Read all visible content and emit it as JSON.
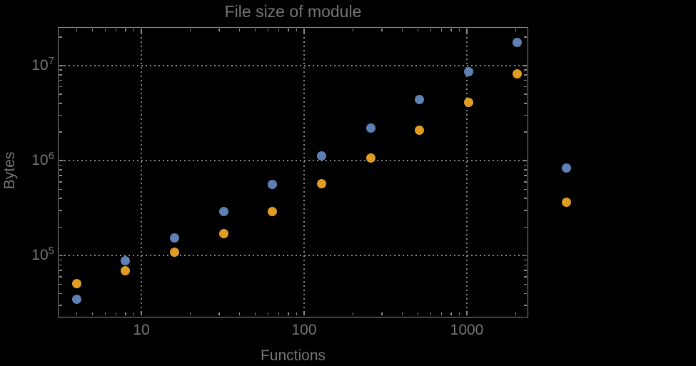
{
  "colors": {
    "background": "#000000",
    "frame": "#8a8a8a",
    "grid": "#868686",
    "text": "#757575",
    "series_blue": "#5e81b5",
    "series_orange": "#e19c24"
  },
  "chart_data": {
    "type": "scatter",
    "title": "File size of module",
    "xlabel": "Functions",
    "ylabel": "Bytes",
    "x_scale": "log",
    "y_scale": "log",
    "grid": "dotted lines at decade ticks, frame ticks on all four edges",
    "legend": "none",
    "x": [
      4,
      8,
      16,
      32,
      64,
      128,
      256,
      512,
      1024,
      2048,
      4096
    ],
    "series": [
      {
        "name": "blue",
        "color": "#5e81b5",
        "values": [
          35000,
          88000,
          155000,
          290000,
          560000,
          1120000,
          2200000,
          4390000,
          8630000,
          17550000,
          841000
        ]
      },
      {
        "name": "orange",
        "color": "#e19c24",
        "values": [
          50500,
          69000,
          108000,
          172000,
          290000,
          575000,
          1060000,
          2090000,
          4100000,
          8190000,
          366000
        ]
      }
    ],
    "x_ticks": [
      {
        "value": 10,
        "label": "10"
      },
      {
        "value": 100,
        "label": "100"
      },
      {
        "value": 1000,
        "label": "1000"
      }
    ],
    "y_ticks": [
      {
        "value": 100000,
        "base": "10",
        "exp": "5"
      },
      {
        "value": 1000000,
        "base": "10",
        "exp": "6"
      },
      {
        "value": 10000000,
        "base": "10",
        "exp": "7"
      }
    ],
    "x_log_range": [
      0.4912,
      3.3728
    ],
    "y_log_range": [
      4.3609,
      7.4023
    ]
  }
}
